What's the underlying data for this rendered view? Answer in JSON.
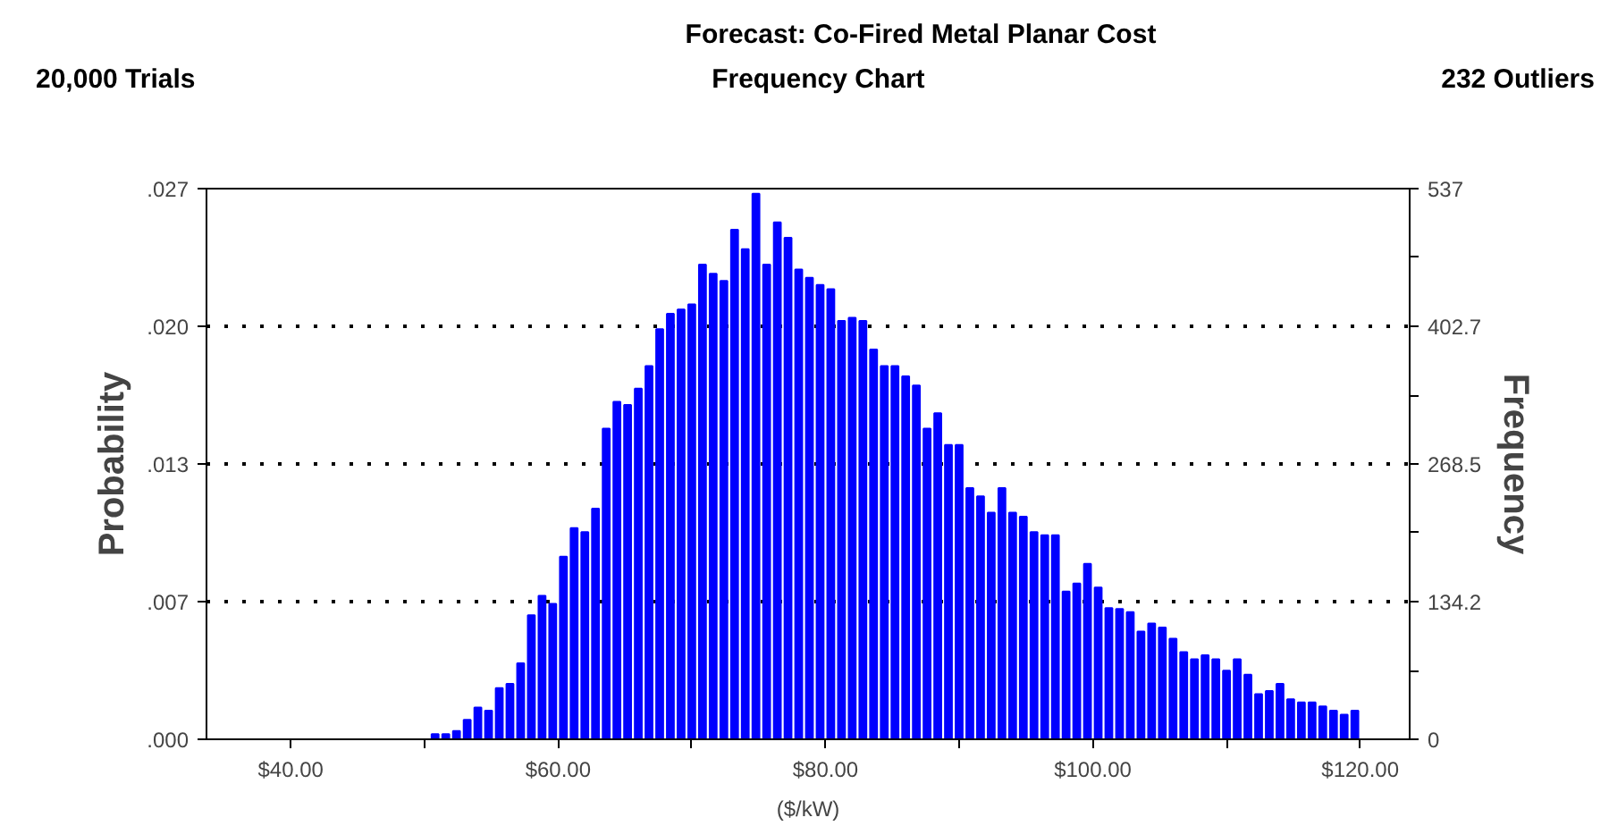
{
  "chart_data": {
    "type": "histogram",
    "title": "Forecast: Co-Fired Metal Planar Cost",
    "subtitle": "Frequency Chart",
    "annotations": [
      "20,000 Trials",
      "232 Outliers"
    ],
    "xlabel": "($/kW)",
    "ylabel": "Probability",
    "y2label": "Frequency",
    "bins": [
      40,
      40.8,
      41.6,
      42.4,
      43.2,
      44,
      44.8,
      45.6,
      46.4,
      47.2,
      48,
      48.8,
      49.6,
      50.4,
      51.2,
      52,
      52.8,
      53.6,
      54.4,
      55.2,
      56,
      56.8,
      57.6,
      58.4,
      59.2,
      60,
      60.8,
      61.6,
      62.4,
      63.2,
      64,
      64.8,
      65.6,
      66.4,
      67.2,
      68,
      68.8,
      69.6,
      70.4,
      71.2,
      72,
      72.8,
      73.6,
      74.4,
      75.2,
      76,
      76.8,
      77.6,
      78.4,
      79.2,
      80,
      80.8,
      81.6,
      82.4,
      83.2,
      84,
      84.8,
      85.6,
      86.4,
      87.2,
      88,
      88.8,
      89.6,
      90.4,
      91.2,
      92,
      92.8,
      93.6,
      94.4,
      95.2,
      96,
      96.8,
      97.6,
      98.4,
      99.2,
      100,
      100.8,
      101.6,
      102.4,
      103.2,
      104,
      104.8,
      105.6,
      106.4,
      107.2,
      108,
      108.8,
      109.6,
      110.4,
      111.2,
      112,
      112.8,
      113.6,
      114.4,
      115.2,
      116,
      116.8,
      117.6,
      118.4,
      119.2,
      120
    ],
    "series": [
      {
        "color": "#0000ff",
        "axis": "y2",
        "values": [
          0,
          0,
          0,
          0,
          0,
          0,
          0,
          0,
          0,
          0,
          0,
          0,
          0,
          5,
          5,
          8,
          19,
          31,
          28,
          50,
          54,
          74,
          121,
          140,
          132,
          178,
          206,
          202,
          225,
          303,
          329,
          326,
          342,
          364,
          400,
          415,
          419,
          424,
          463,
          454,
          447,
          497,
          478,
          532,
          463,
          504,
          489,
          458,
          450,
          443,
          439,
          408,
          411,
          408,
          380,
          364,
          364,
          354,
          345,
          303,
          318,
          287,
          287,
          245,
          237,
          221,
          245,
          221,
          217,
          202,
          199,
          199,
          144,
          152,
          171,
          148,
          128,
          127,
          124,
          105,
          113,
          109,
          98,
          85,
          78,
          82,
          78,
          67,
          78,
          63,
          44,
          47,
          54,
          39,
          36,
          36,
          32,
          28,
          24,
          28
        ]
      }
    ],
    "xlim": [
      33.7,
      123.7
    ],
    "xticks": [
      {
        "value": 40,
        "label": "$40.00"
      },
      {
        "value": 50,
        "label": null
      },
      {
        "value": 60,
        "label": "$60.00"
      },
      {
        "value": 70,
        "label": null
      },
      {
        "value": 80,
        "label": "$80.00"
      },
      {
        "value": 90,
        "label": null
      },
      {
        "value": 100,
        "label": "$100.00"
      },
      {
        "value": 110,
        "label": null
      },
      {
        "value": 120,
        "label": "$120.00"
      }
    ],
    "ylim": [
      0,
      0.02685
    ],
    "yticks": [
      {
        "value": 0,
        "label": ".000"
      },
      {
        "value": 0.00671,
        "label": ".007"
      },
      {
        "value": 0.013425,
        "label": ".013"
      },
      {
        "value": 0.020135,
        "label": ".020"
      },
      {
        "value": 0.02685,
        "label": ".027"
      }
    ],
    "y2lim": [
      0,
      537
    ],
    "y2ticks": [
      0,
      {
        "value": 67.1,
        "label": null
      },
      134.2,
      {
        "value": 201.4,
        "label": null
      },
      268.5,
      {
        "value": 335.6,
        "label": null
      },
      402.7,
      {
        "value": 469.9,
        "label": null
      },
      537
    ],
    "grid": "y"
  }
}
